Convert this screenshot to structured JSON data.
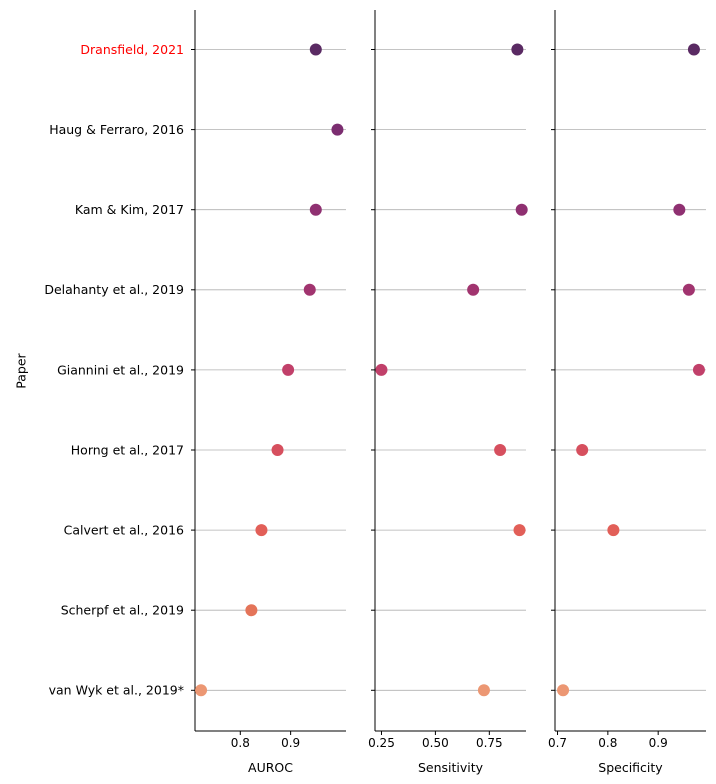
{
  "chart_data": {
    "type": "scatter",
    "ylabel": "Paper",
    "papers": [
      "Dransfield, 2021",
      "Haug & Ferraro, 2016",
      "Kam & Kim, 2017",
      "Delahanty et al., 2019",
      "Giannini et al., 2019",
      "Horng et al., 2017",
      "Calvert et al., 2016",
      "Scherpf et al., 2019",
      "van Wyk et al., 2019*"
    ],
    "highlight_paper": "Dransfield, 2021",
    "highlight_color": "#ff0000",
    "point_colors": [
      "#5a2a63",
      "#7b2d70",
      "#8f3071",
      "#a1346f",
      "#c1406a",
      "#d64f5e",
      "#e25f58",
      "#e47459",
      "#ec9773"
    ],
    "grid": "horizontal",
    "panels": [
      {
        "xlabel": "AUROC",
        "xlim": [
          0.71,
          1.01
        ],
        "ticks": [
          {
            "value": 0.8,
            "label": "0.8"
          },
          {
            "value": 0.9,
            "label": "0.9"
          }
        ],
        "values": [
          0.95,
          0.993,
          0.95,
          0.938,
          0.895,
          0.874,
          0.842,
          0.822,
          0.722
        ]
      },
      {
        "xlabel": "Sensitivity",
        "xlim": [
          0.22,
          0.92
        ],
        "ticks": [
          {
            "value": 0.25,
            "label": "0.25"
          },
          {
            "value": 0.5,
            "label": "0.50"
          },
          {
            "value": 0.75,
            "label": "0.75"
          }
        ],
        "values": [
          0.88,
          null,
          0.9,
          0.675,
          0.25,
          0.8,
          0.89,
          null,
          0.725
        ]
      },
      {
        "xlabel": "Specificity",
        "xlim": [
          0.695,
          0.995
        ],
        "ticks": [
          {
            "value": 0.7,
            "label": "0.7"
          },
          {
            "value": 0.8,
            "label": "0.8"
          },
          {
            "value": 0.9,
            "label": "0.9"
          }
        ],
        "values": [
          0.971,
          null,
          0.942,
          0.961,
          0.981,
          0.749,
          0.811,
          null,
          0.711
        ]
      }
    ]
  }
}
